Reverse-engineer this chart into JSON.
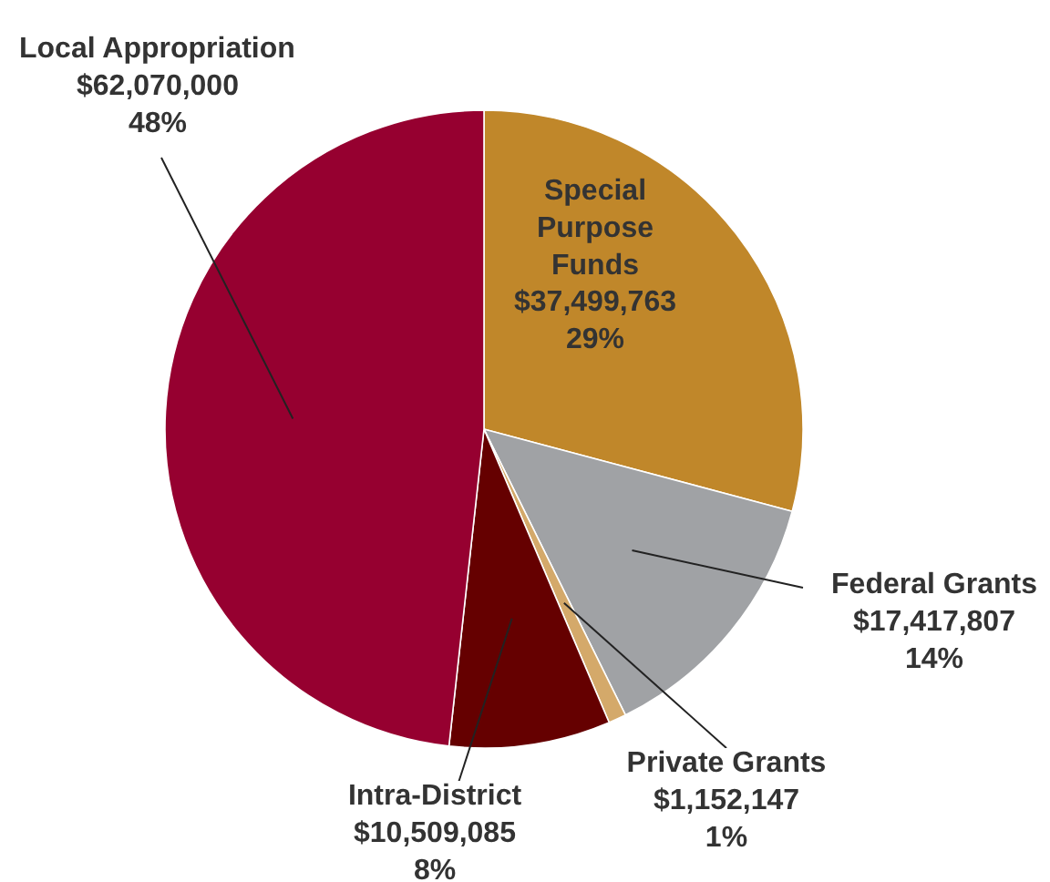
{
  "chart_data": {
    "type": "pie",
    "categories": [
      "Special Purpose Funds",
      "Federal Grants",
      "Private Grants",
      "Intra-District",
      "Local Appropriation"
    ],
    "values": [
      37499763,
      17417807,
      1152147,
      10509085,
      62070000
    ],
    "value_labels": [
      "$37,499,763\n29%",
      "$17,417,807\n14%",
      "$1,152,147\n1%",
      "$10,509,085\n8%",
      "$62,070,000\n48%"
    ],
    "colors": [
      "#c0872a",
      "#a0a2a5",
      "#d4a96a",
      "#650000",
      "#960030"
    ]
  }
}
